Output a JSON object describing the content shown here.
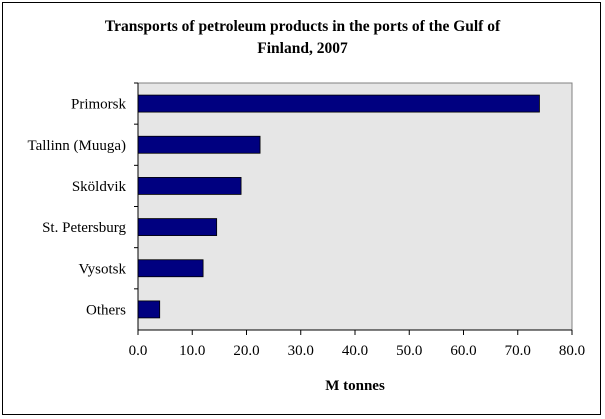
{
  "chart_data": {
    "type": "bar",
    "orientation": "horizontal",
    "title_line1": "Transports of petroleum products in the ports of the Gulf of",
    "title_line2": "Finland, 2007",
    "xlabel": "M tonnes",
    "ylabel": "",
    "categories": [
      "Primorsk",
      "Tallinn (Muuga)",
      "Sköldvik",
      "St. Petersburg",
      "Vysotsk",
      "Others"
    ],
    "values": [
      74.0,
      22.5,
      19.0,
      14.5,
      12.0,
      4.0
    ],
    "xlim": [
      0,
      80
    ],
    "ticks": [
      "0.0",
      "10.0",
      "20.0",
      "30.0",
      "40.0",
      "50.0",
      "60.0",
      "70.0",
      "80.0"
    ],
    "grid": false,
    "legend": "none",
    "colors": {
      "bar": "#000080",
      "plot_bg": "#e6e6e6"
    }
  }
}
